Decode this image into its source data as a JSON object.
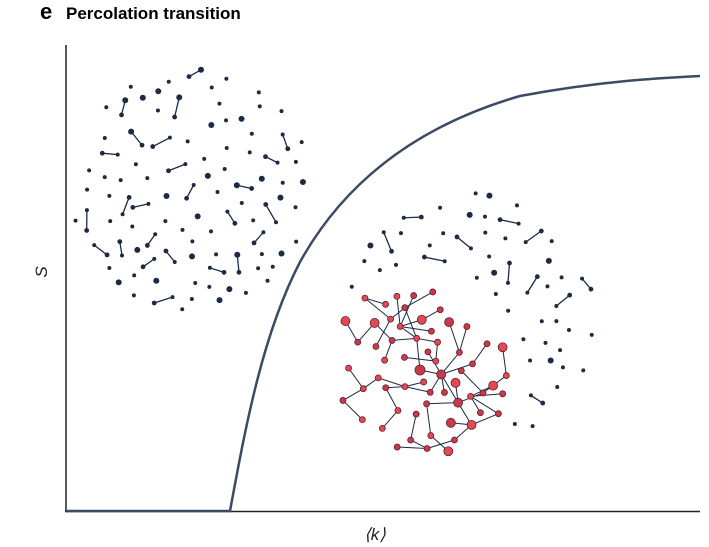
{
  "panel_label": "e",
  "title": "Percolation transition",
  "y_axis_label": "S",
  "x_axis_label": "⟨k⟩"
}
